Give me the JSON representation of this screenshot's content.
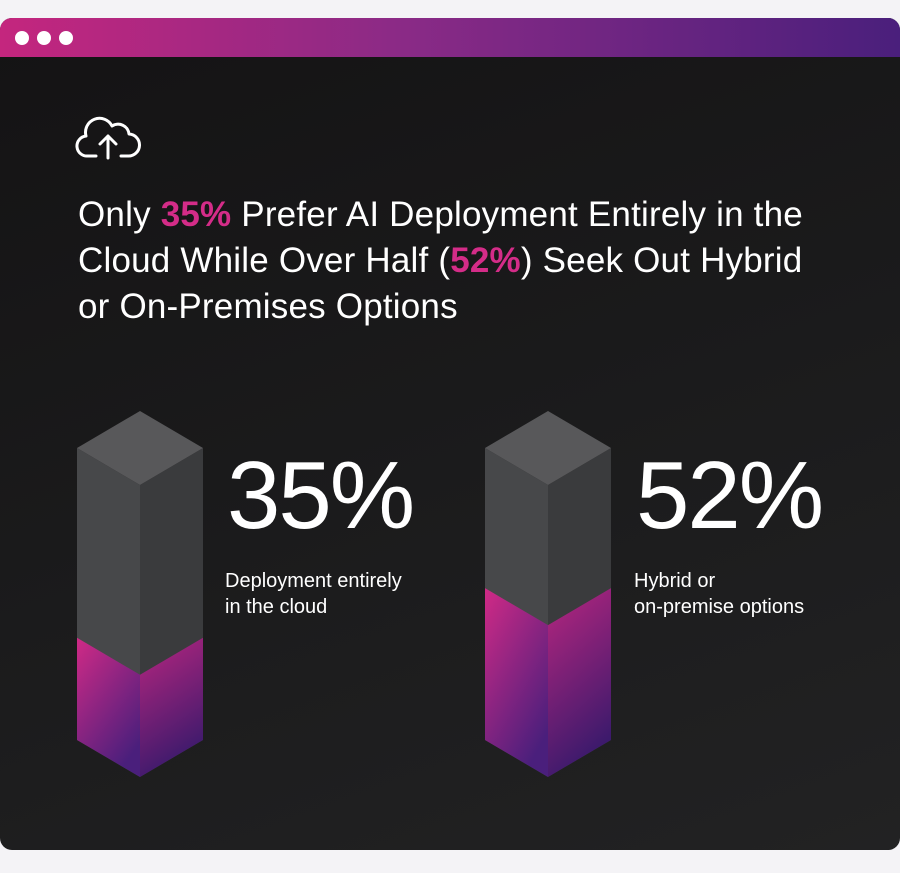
{
  "chart_data": {
    "type": "bar",
    "title": [
      {
        "text": "Only "
      },
      {
        "text": "35%",
        "highlight": true
      },
      {
        "text": " Prefer AI Deployment Entirely in the Cloud While Over Half ("
      },
      {
        "text": "52%",
        "highlight": true
      },
      {
        "text": ") Seek Out Hybrid or On-Premises Options"
      }
    ],
    "highlight_color": "#d42c88",
    "categories": [
      "Deployment entirely\nin the cloud",
      "Hybrid or\non-premise options"
    ],
    "values": [
      35,
      52
    ],
    "value_labels": [
      "35%",
      "52%"
    ],
    "ylim": [
      0,
      100
    ],
    "color": "#c4267e"
  }
}
